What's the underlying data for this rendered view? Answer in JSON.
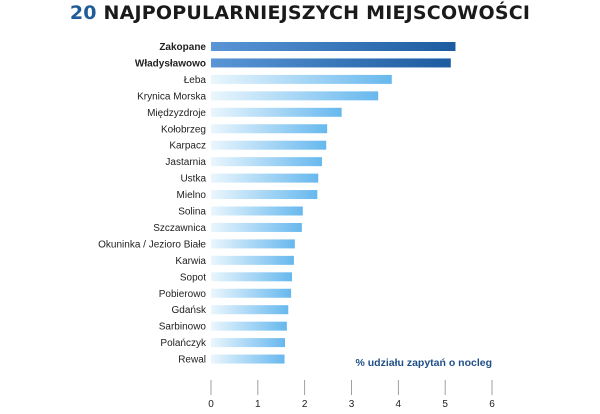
{
  "title_number": "20",
  "title_text": "NAJPOPULARNIEJSZYCH MIEJSCOWOŚCI",
  "annotation": "% udziału zapytań o nocleg",
  "colors": {
    "highlight_bar": "#1c5ba0",
    "highlight_bar_light": "#5a96d6",
    "regular_bar": "#67b8ee",
    "regular_bar_light": "#eaf6fd",
    "annotation": "#1f4f87",
    "title_number": "#1f5c98"
  },
  "chart_data": {
    "type": "bar",
    "orientation": "horizontal",
    "title": "20 NAJPOPULARNIEJSZYCH MIEJSCOWOŚCI",
    "annotation": "% udziału zapytań o nocleg",
    "categories": [
      "Zakopane",
      "Władysławowo",
      "Łeba",
      "Krynica Morska",
      "Międzyzdroje",
      "Kołobrzeg",
      "Karpacz",
      "Jastarnia",
      "Ustka",
      "Mielno",
      "Solina",
      "Szczawnica",
      "Okuninka / Jezioro Białe",
      "Karwia",
      "Sopot",
      "Pobierowo",
      "Gdańsk",
      "Sarbinowo",
      "Polańczyk",
      "Rewal"
    ],
    "values": [
      5.22,
      5.12,
      3.86,
      3.57,
      2.79,
      2.48,
      2.46,
      2.37,
      2.29,
      2.27,
      1.96,
      1.94,
      1.79,
      1.77,
      1.73,
      1.71,
      1.65,
      1.62,
      1.58,
      1.57
    ],
    "highlighted": [
      "Zakopane",
      "Władysławowo"
    ],
    "xlim": [
      0,
      6
    ],
    "xticks": [
      "0",
      "1",
      "2",
      "3",
      "4",
      "5",
      "6"
    ],
    "grid": false
  }
}
